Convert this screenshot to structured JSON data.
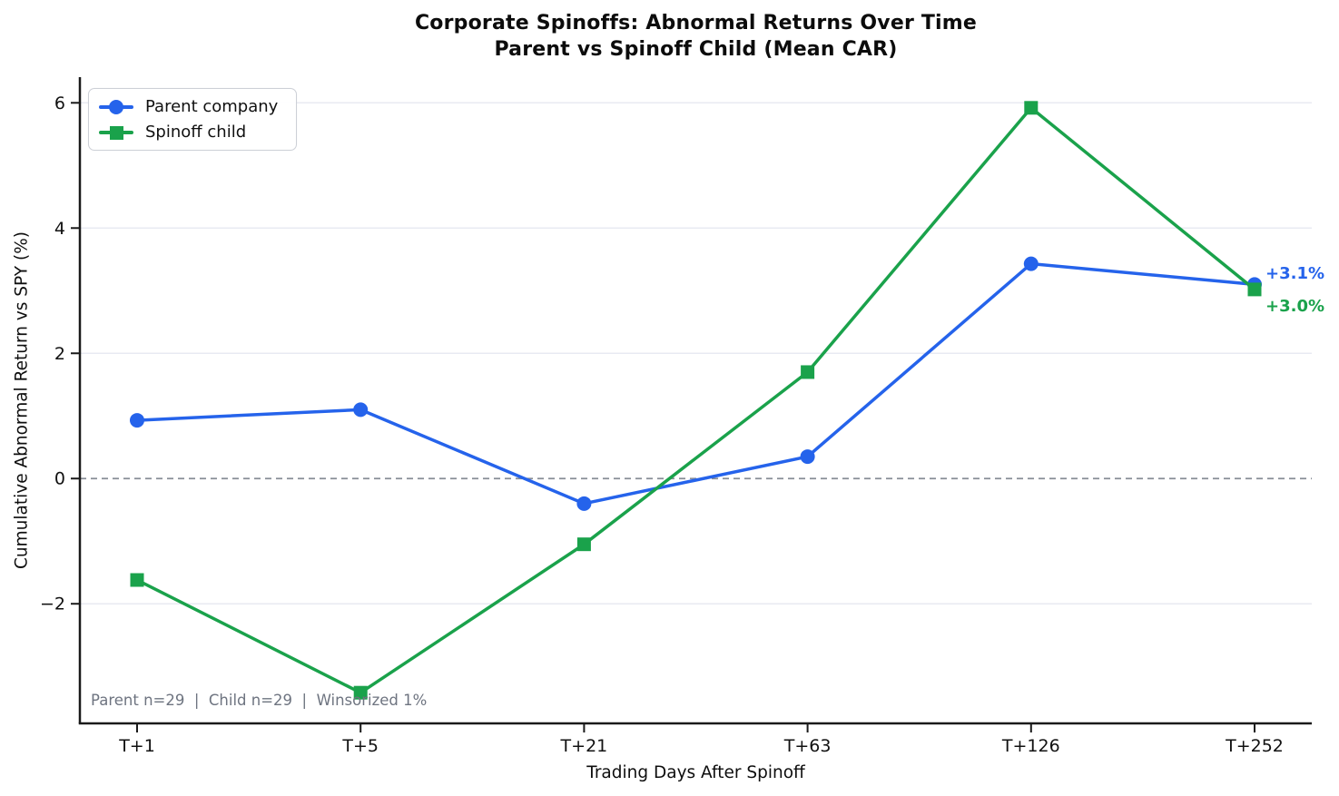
{
  "footnote": "Parent n=29  |  Child n=29  |  Winsorized 1%",
  "chart_data": {
    "type": "line",
    "title": "Corporate Spinoffs: Abnormal Returns Over Time",
    "subtitle": "Parent vs Spinoff Child (Mean CAR)",
    "categories": [
      "T+1",
      "T+5",
      "T+21",
      "T+63",
      "T+126",
      "T+252"
    ],
    "series": [
      {
        "name": "Parent company",
        "marker": "circle",
        "color": "#2563eb",
        "values": [
          0.93,
          1.1,
          -0.4,
          0.35,
          3.43,
          3.1
        ],
        "end_label": "+3.1%"
      },
      {
        "name": "Spinoff child",
        "marker": "square",
        "color": "#1aa24b",
        "values": [
          -1.62,
          -3.42,
          -1.05,
          1.7,
          5.92,
          3.02
        ],
        "end_label": "+3.0%"
      }
    ],
    "xlabel": "Trading Days After Spinoff",
    "ylabel": "Cumulative Abnormal Return vs SPY (%)",
    "ylim": [
      -3.91,
      6.41
    ],
    "yticks": [
      -2,
      0,
      2,
      4,
      6
    ],
    "zero_line": 0,
    "grid": "horizontal",
    "legend_position": "upper-left"
  },
  "style": {
    "grid_color": "#e8eaf2",
    "zero_line_color": "#888d96",
    "axis_color": "#1a1a1a",
    "tick_label_color": "#111111",
    "background": "#ffffff"
  }
}
